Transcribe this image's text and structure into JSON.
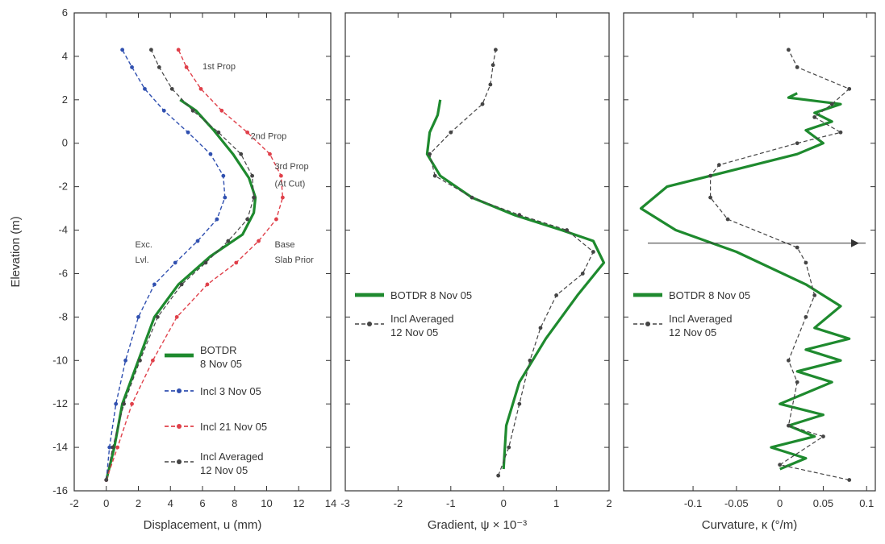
{
  "chart_data": [
    {
      "type": "line",
      "xlabel": "Displacement, u (mm)",
      "ylabel": "Elevation (m)",
      "xlim": [
        -2,
        14
      ],
      "ylim": [
        -16,
        6
      ],
      "x_ticks": [
        "-2",
        "0",
        "2",
        "4",
        "6",
        "8",
        "10",
        "12",
        "14"
      ],
      "y_ticks": [
        "-16",
        "-14",
        "-12",
        "-10",
        "-8",
        "-6",
        "-4",
        "-2",
        "0",
        "2",
        "4",
        "6"
      ],
      "grid": false,
      "legend_position": "bottom-right",
      "legend": [
        {
          "label": "BOTDR",
          "label2": "8 Nov 05",
          "style": "green-thick"
        },
        {
          "label": "Incl 3 Nov 05",
          "label2": "",
          "style": "blue-dashed"
        },
        {
          "label": "Incl 21 Nov 05",
          "label2": "",
          "style": "red-dashed"
        },
        {
          "label": "Incl Averaged",
          "label2": "12 Nov 05",
          "style": "black-dashed"
        }
      ],
      "annotations": [
        {
          "text": "1st Prop",
          "x": 6.0,
          "y": 3.4
        },
        {
          "text": "2nd Prop",
          "x": 9.0,
          "y": 0.2
        },
        {
          "text": "3rd Prop",
          "x": 10.5,
          "y": -1.2
        },
        {
          "text": "(At Cut)",
          "x": 10.5,
          "y": -2.0
        },
        {
          "text": "Exc.",
          "x": 1.8,
          "y": -4.8
        },
        {
          "text": "Lvl.",
          "x": 1.8,
          "y": -5.5
        },
        {
          "text": "Base",
          "x": 10.5,
          "y": -4.8
        },
        {
          "text": "Slab Prior",
          "x": 10.5,
          "y": -5.5
        }
      ],
      "series": [
        {
          "name": "BOTDR 8 Nov 05",
          "color": "#1e8a2e",
          "x": [
            0,
            0.5,
            1.0,
            2.0,
            3.0,
            4.5,
            6.5,
            8.5,
            9.2,
            9.3,
            8.9,
            7.9,
            6.7,
            5.6,
            4.6
          ],
          "y": [
            -15.5,
            -14.0,
            -12.0,
            -10.0,
            -8.0,
            -6.5,
            -5.2,
            -4.2,
            -3.2,
            -2.5,
            -1.6,
            -0.5,
            0.6,
            1.5,
            2.0
          ]
        },
        {
          "name": "Incl 3 Nov 05",
          "color": "#3050b0",
          "x": [
            0,
            0.2,
            0.6,
            1.2,
            2.0,
            3.0,
            4.3,
            5.7,
            6.9,
            7.4,
            7.3,
            6.5,
            5.1,
            3.6,
            2.4,
            1.6,
            1.0
          ],
          "y": [
            -15.5,
            -14.0,
            -12.0,
            -10.0,
            -8.0,
            -6.5,
            -5.5,
            -4.5,
            -3.5,
            -2.5,
            -1.5,
            -0.5,
            0.5,
            1.5,
            2.5,
            3.5,
            4.3
          ]
        },
        {
          "name": "Incl 21 Nov 05",
          "color": "#e0404a",
          "x": [
            0,
            0.7,
            1.6,
            2.9,
            4.4,
            6.3,
            8.1,
            9.5,
            10.6,
            11.0,
            10.9,
            10.2,
            8.8,
            7.2,
            5.9,
            5.0,
            4.5
          ],
          "y": [
            -15.5,
            -14.0,
            -12.0,
            -10.0,
            -8.0,
            -6.5,
            -5.5,
            -4.5,
            -3.5,
            -2.5,
            -1.5,
            -0.5,
            0.5,
            1.5,
            2.5,
            3.5,
            4.3
          ]
        },
        {
          "name": "Incl Averaged 12 Nov 05",
          "color": "#444444",
          "x": [
            0,
            0.4,
            1.1,
            2.1,
            3.2,
            4.7,
            6.2,
            7.6,
            8.8,
            9.2,
            9.1,
            8.4,
            7.0,
            5.4,
            4.1,
            3.3,
            2.8
          ],
          "y": [
            -15.5,
            -14.0,
            -12.0,
            -10.0,
            -8.0,
            -6.5,
            -5.5,
            -4.5,
            -3.5,
            -2.5,
            -1.5,
            -0.5,
            0.5,
            1.5,
            2.5,
            3.5,
            4.3
          ]
        }
      ]
    },
    {
      "type": "line",
      "xlabel": "Gradient, ψ × 10⁻³",
      "ylabel": "",
      "xlim": [
        -3,
        2
      ],
      "ylim": [
        -16,
        6
      ],
      "x_ticks": [
        "-3",
        "-2",
        "-1",
        "0",
        "1",
        "2"
      ],
      "y_ticks": [],
      "grid": false,
      "legend_position": "middle-left",
      "legend": [
        {
          "label": "BOTDR 8 Nov 05",
          "label2": "",
          "style": "green-thick"
        },
        {
          "label": "Incl Averaged",
          "label2": "12 Nov 05",
          "style": "black-dashed"
        }
      ],
      "annotations": [],
      "series": [
        {
          "name": "BOTDR 8 Nov 05",
          "color": "#1e8a2e",
          "x": [
            0.0,
            0.05,
            0.3,
            0.8,
            1.4,
            1.9,
            1.7,
            1.1,
            0.2,
            -0.6,
            -1.2,
            -1.45,
            -1.4,
            -1.25,
            -1.2
          ],
          "y": [
            -15.0,
            -13.0,
            -11.0,
            -9.0,
            -7.0,
            -5.5,
            -4.5,
            -4.0,
            -3.3,
            -2.5,
            -1.5,
            -0.5,
            0.5,
            1.3,
            2.0
          ]
        },
        {
          "name": "Incl Averaged 12 Nov 05",
          "color": "#444444",
          "x": [
            -0.1,
            0.1,
            0.3,
            0.5,
            0.7,
            1.0,
            1.5,
            1.7,
            1.2,
            0.3,
            -0.6,
            -1.3,
            -1.4,
            -1.0,
            -0.4,
            -0.25,
            -0.2,
            -0.15
          ],
          "y": [
            -15.3,
            -14.0,
            -12.0,
            -10.0,
            -8.5,
            -7.0,
            -6.0,
            -5.0,
            -4.0,
            -3.3,
            -2.5,
            -1.5,
            -0.5,
            0.5,
            1.8,
            2.7,
            3.6,
            4.3
          ]
        }
      ]
    },
    {
      "type": "line",
      "xlabel": "Curvature, κ (°/m)",
      "ylabel": "",
      "xlim": [
        -0.18,
        0.11
      ],
      "ylim": [
        -16,
        6
      ],
      "x_ticks": [
        "-0.1",
        "-0.05",
        "0",
        "0.05",
        "0.1"
      ],
      "y_ticks": [],
      "grid": false,
      "legend_position": "middle-left",
      "legend": [
        {
          "label": "BOTDR 8 Nov 05",
          "label2": "",
          "style": "green-thick"
        },
        {
          "label": "Incl Averaged",
          "label2": "12 Nov 05",
          "style": "black-dashed"
        }
      ],
      "annotations": [],
      "series": [
        {
          "name": "BOTDR 8 Nov 05",
          "color": "#1e8a2e",
          "x": [
            0.0,
            0.03,
            -0.01,
            0.04,
            0.01,
            0.05,
            0.0,
            0.06,
            0.02,
            0.07,
            0.03,
            0.08,
            0.04,
            0.07,
            0.03,
            -0.05,
            -0.12,
            -0.16,
            -0.13,
            -0.05,
            0.02,
            0.05,
            0.03,
            0.06,
            0.04,
            0.07,
            0.01,
            0.02
          ],
          "y": [
            -15.0,
            -14.5,
            -14.0,
            -13.5,
            -13.0,
            -12.5,
            -12.0,
            -11.0,
            -10.5,
            -10.0,
            -9.5,
            -9.0,
            -8.5,
            -7.5,
            -6.5,
            -5.0,
            -4.0,
            -3.0,
            -2.0,
            -1.2,
            -0.5,
            0.0,
            0.6,
            1.0,
            1.4,
            1.8,
            2.1,
            2.3
          ]
        },
        {
          "name": "Incl Averaged 12 Nov 05",
          "color": "#444444",
          "x": [
            0.08,
            0.0,
            0.05,
            0.01,
            0.02,
            0.01,
            0.03,
            0.04,
            0.03,
            0.02,
            -0.06,
            -0.08,
            -0.08,
            -0.07,
            0.02,
            0.07,
            0.04,
            0.06,
            0.08,
            0.02,
            0.01
          ],
          "y": [
            -15.5,
            -14.8,
            -13.5,
            -13.0,
            -11.0,
            -10.0,
            -8.0,
            -7.0,
            -5.5,
            -4.8,
            -3.5,
            -2.5,
            -1.5,
            -1.0,
            0.0,
            0.5,
            1.2,
            1.8,
            2.5,
            3.5,
            4.3
          ]
        }
      ]
    }
  ]
}
